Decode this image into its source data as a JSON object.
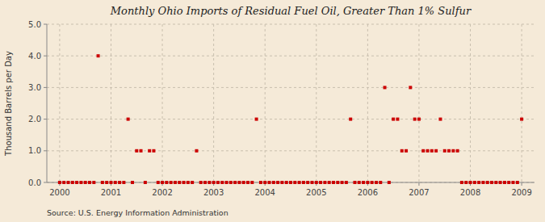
{
  "chart_data": {
    "type": "scatter",
    "title": "Monthly Ohio Imports of Residual Fuel Oil, Greater Than 1% Sulfur",
    "y_label": "Thousand Barrels per Day",
    "annotations": [
      "Source: U.S. Energy Information Administration"
    ],
    "color": "#cc0000",
    "marker": "square",
    "grid": true,
    "xlim": [
      1999.75,
      2009.25
    ],
    "xticks": [
      2000,
      2001,
      2002,
      2003,
      2004,
      2005,
      2006,
      2007,
      2008,
      2009
    ],
    "ylim": [
      0,
      5.0
    ],
    "yticks": [
      {
        "value": 0.0,
        "label": "0.0"
      },
      {
        "value": 1.0,
        "label": "1.0"
      },
      {
        "value": 2.0,
        "label": "2.0"
      },
      {
        "value": 3.0,
        "label": "3.0"
      },
      {
        "value": 4.0,
        "label": "4.0"
      },
      {
        "value": 5.0,
        "label": "5.0"
      }
    ],
    "x": [
      2000.0,
      2000.083,
      2000.167,
      2000.25,
      2000.333,
      2000.417,
      2000.5,
      2000.583,
      2000.667,
      2000.75,
      2000.833,
      2000.917,
      2001.0,
      2001.083,
      2001.167,
      2001.25,
      2001.333,
      2001.417,
      2001.5,
      2001.583,
      2001.667,
      2001.75,
      2001.833,
      2001.917,
      2002.0,
      2002.083,
      2002.167,
      2002.25,
      2002.333,
      2002.417,
      2002.5,
      2002.583,
      2002.667,
      2002.75,
      2002.833,
      2002.917,
      2003.0,
      2003.083,
      2003.167,
      2003.25,
      2003.333,
      2003.417,
      2003.5,
      2003.583,
      2003.667,
      2003.75,
      2003.833,
      2003.917,
      2004.0,
      2004.083,
      2004.167,
      2004.25,
      2004.333,
      2004.417,
      2004.5,
      2004.583,
      2004.667,
      2004.75,
      2004.833,
      2004.917,
      2005.0,
      2005.083,
      2005.167,
      2005.25,
      2005.333,
      2005.417,
      2005.5,
      2005.583,
      2005.667,
      2005.75,
      2005.833,
      2005.917,
      2006.0,
      2006.083,
      2006.167,
      2006.25,
      2006.333,
      2006.417,
      2006.5,
      2006.583,
      2006.667,
      2006.75,
      2006.833,
      2006.917,
      2007.0,
      2007.083,
      2007.167,
      2007.25,
      2007.333,
      2007.417,
      2007.5,
      2007.583,
      2007.667,
      2007.75,
      2007.833,
      2007.917,
      2008.0,
      2008.083,
      2008.167,
      2008.25,
      2008.333,
      2008.417,
      2008.5,
      2008.583,
      2008.667,
      2008.75,
      2008.833,
      2008.917,
      2009.0
    ],
    "values": [
      0.0,
      0.0,
      0.0,
      0.0,
      0.0,
      0.0,
      0.0,
      0.0,
      0.0,
      4.0,
      0.0,
      0.0,
      0.0,
      0.0,
      0.0,
      0.0,
      2.0,
      0.0,
      1.0,
      1.0,
      0.0,
      1.0,
      1.0,
      0.0,
      0.0,
      0.0,
      0.0,
      0.0,
      0.0,
      0.0,
      0.0,
      0.0,
      1.0,
      0.0,
      0.0,
      0.0,
      0.0,
      0.0,
      0.0,
      0.0,
      0.0,
      0.0,
      0.0,
      0.0,
      0.0,
      0.0,
      2.0,
      0.0,
      0.0,
      0.0,
      0.0,
      0.0,
      0.0,
      0.0,
      0.0,
      0.0,
      0.0,
      0.0,
      0.0,
      0.0,
      0.0,
      0.0,
      0.0,
      0.0,
      0.0,
      0.0,
      0.0,
      0.0,
      2.0,
      0.0,
      0.0,
      0.0,
      0.0,
      0.0,
      0.0,
      0.0,
      3.0,
      0.0,
      2.0,
      2.0,
      1.0,
      1.0,
      3.0,
      2.0,
      2.0,
      1.0,
      1.0,
      1.0,
      1.0,
      2.0,
      1.0,
      1.0,
      1.0,
      1.0,
      0.0,
      0.0,
      0.0,
      0.0,
      0.0,
      0.0,
      0.0,
      0.0,
      0.0,
      0.0,
      0.0,
      0.0,
      0.0,
      0.0,
      2.0
    ]
  }
}
